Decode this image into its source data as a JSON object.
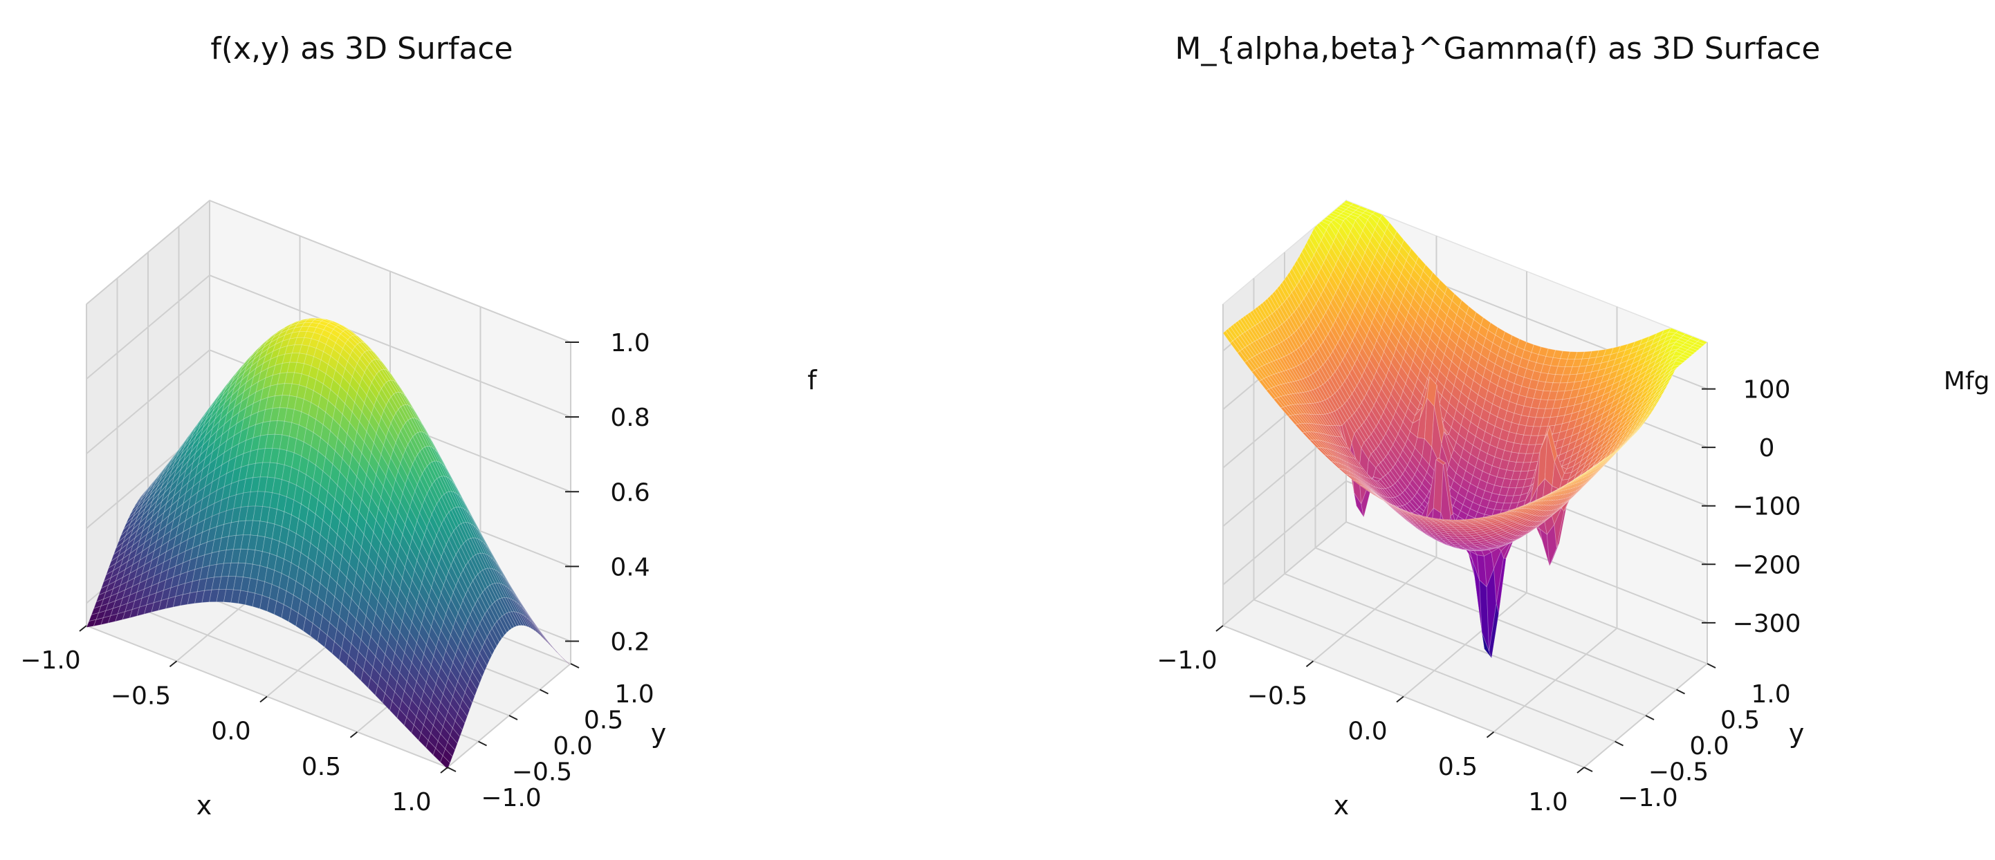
{
  "chart_data": [
    {
      "type": "surface3d",
      "title": "f(x,y) as 3D Surface",
      "xlabel": "x",
      "ylabel": "y",
      "zlabel": "f",
      "colormap": "viridis",
      "xlim": [
        -1.0,
        1.0
      ],
      "ylim": [
        -1.0,
        1.0
      ],
      "zlim": [
        0.14,
        1.0
      ],
      "xticks": [
        "−1.0",
        "−0.5",
        "0.0",
        "0.5",
        "1.0"
      ],
      "yticks": [
        "−1.0",
        "−0.5",
        "0.0",
        "0.5",
        "1.0"
      ],
      "zticks": [
        "0.2",
        "0.4",
        "0.6",
        "0.8",
        "1.0"
      ],
      "xtick_values": [
        -1.0,
        -0.5,
        0.0,
        0.5,
        1.0
      ],
      "ytick_values": [
        -1.0,
        -0.5,
        0.0,
        0.5,
        1.0
      ],
      "ztick_values": [
        0.2,
        0.4,
        0.6,
        0.8,
        1.0
      ],
      "grid_n": 50,
      "corner_values": {
        "x-1_y-1": 0.14,
        "x1_y-1": 0.14,
        "x-1_y1": 0.14,
        "x1_y1": 0.14
      },
      "peak": {
        "x": 0.0,
        "y": 0.0,
        "z": 1.0
      }
    },
    {
      "type": "surface3d",
      "title": "M_{alpha,beta}^Gamma(f) as 3D Surface",
      "xlabel": "x",
      "ylabel": "y",
      "zlabel": "Mfg",
      "colormap": "plasma",
      "xlim": [
        -1.0,
        1.0
      ],
      "ylim": [
        -1.0,
        1.0
      ],
      "zlim": [
        -370,
        180
      ],
      "xticks": [
        "−1.0",
        "−0.5",
        "0.0",
        "0.5",
        "1.0"
      ],
      "yticks": [
        "−1.0",
        "−0.5",
        "0.0",
        "0.5",
        "1.0"
      ],
      "zticks": [
        "100",
        "0",
        "−100",
        "−200",
        "−300"
      ],
      "xtick_values": [
        -1.0,
        -0.5,
        0.0,
        0.5,
        1.0
      ],
      "ytick_values": [
        -1.0,
        -0.5,
        0.0,
        0.5,
        1.0
      ],
      "ztick_values": [
        100,
        0,
        -100,
        -200,
        -300
      ],
      "grid_n": 50,
      "corner_values": {
        "x-1_y-1": 60,
        "x1_y-1": 60,
        "x-1_y1": 180,
        "x1_y1": 180
      },
      "min_value": -370,
      "max_value": 180
    }
  ]
}
